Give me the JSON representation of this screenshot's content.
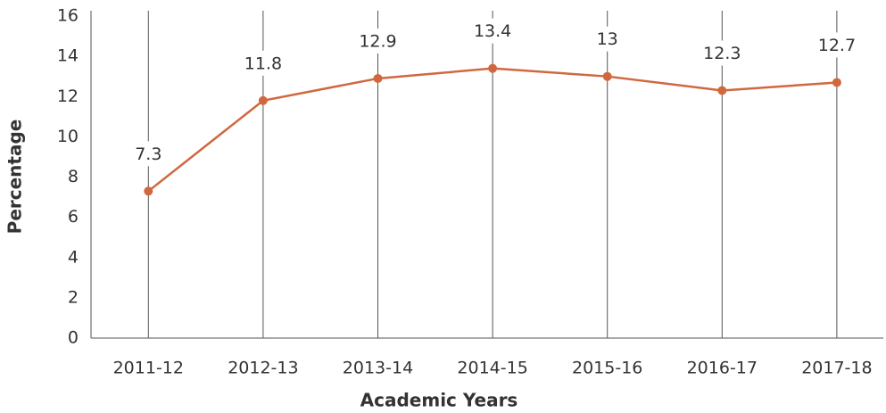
{
  "chart_data": {
    "type": "line",
    "x_label": "Academic Years",
    "y_label": "Percentage",
    "categories": [
      "2011-12",
      "2012-13",
      "2013-14",
      "2014-15",
      "2015-16",
      "2016-17",
      "2017-18"
    ],
    "series": [
      {
        "name": "Percentage",
        "color": "#d0683f",
        "values": [
          7.3,
          11.8,
          12.9,
          13.4,
          13,
          12.3,
          12.7
        ]
      }
    ],
    "ylim": [
      0,
      16
    ],
    "yticks": [
      0,
      2,
      4,
      6,
      8,
      10,
      12,
      14,
      16
    ],
    "grid": "x",
    "data_labels": true
  }
}
